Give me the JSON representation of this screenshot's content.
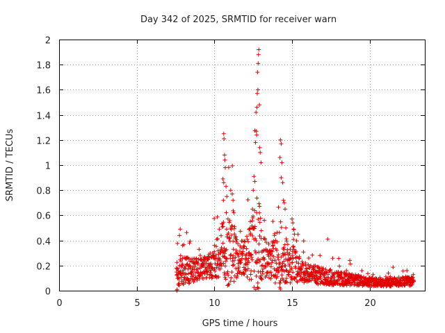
{
  "chart_data": {
    "type": "scatter",
    "title": "Day 342 of 2025, SRMTID for receiver warn",
    "xlabel": "GPS time / hours",
    "ylabel": "SRMTID / TECUs",
    "xlim": [
      0,
      23.55
    ],
    "ylim": [
      0,
      2
    ],
    "x_ticks": [
      "0",
      "5",
      "10",
      "15",
      "20"
    ],
    "y_ticks": [
      "0",
      "0.2",
      "0.4",
      "0.6",
      "0.8",
      "1",
      "1.2",
      "1.4",
      "1.6",
      "1.8",
      "2"
    ],
    "grid": true,
    "marker": "+",
    "series_color": "#e00000",
    "activity_profile": [
      [
        7.6,
        0.12,
        0.22
      ],
      [
        8.0,
        0.15,
        0.25
      ],
      [
        8.5,
        0.15,
        0.22
      ],
      [
        9.0,
        0.16,
        0.2
      ],
      [
        9.5,
        0.18,
        0.2
      ],
      [
        10.0,
        0.2,
        0.25
      ],
      [
        10.5,
        0.3,
        0.5
      ],
      [
        10.8,
        0.35,
        0.8
      ],
      [
        11.2,
        0.28,
        0.55
      ],
      [
        11.6,
        0.25,
        0.3
      ],
      [
        12.0,
        0.25,
        0.3
      ],
      [
        12.5,
        0.3,
        0.7
      ],
      [
        12.8,
        0.3,
        1.0
      ],
      [
        13.2,
        0.25,
        0.35
      ],
      [
        13.6,
        0.22,
        0.3
      ],
      [
        14.2,
        0.25,
        0.6
      ],
      [
        14.6,
        0.22,
        0.4
      ],
      [
        15.0,
        0.2,
        0.35
      ],
      [
        15.5,
        0.16,
        0.22
      ],
      [
        16.0,
        0.13,
        0.18
      ],
      [
        17.0,
        0.11,
        0.15
      ],
      [
        18.0,
        0.09,
        0.12
      ],
      [
        19.0,
        0.08,
        0.1
      ],
      [
        20.0,
        0.07,
        0.08
      ],
      [
        21.0,
        0.06,
        0.07
      ],
      [
        22.0,
        0.07,
        0.08
      ],
      [
        22.8,
        0.07,
        0.08
      ]
    ],
    "highlights": [
      [
        7.58,
        0.0
      ],
      [
        7.6,
        0.01
      ],
      [
        7.8,
        0.49
      ],
      [
        7.75,
        0.44
      ],
      [
        7.95,
        0.36
      ],
      [
        8.4,
        0.38
      ],
      [
        9.5,
        0.15
      ],
      [
        10.0,
        0.36
      ],
      [
        10.6,
        1.25
      ],
      [
        10.62,
        1.21
      ],
      [
        10.65,
        1.08
      ],
      [
        10.68,
        1.04
      ],
      [
        10.7,
        0.98
      ],
      [
        10.55,
        0.89
      ],
      [
        10.6,
        0.86
      ],
      [
        10.75,
        0.83
      ],
      [
        10.8,
        0.75
      ],
      [
        10.58,
        0.72
      ],
      [
        11.05,
        0.8
      ],
      [
        11.15,
        0.77
      ],
      [
        11.2,
        0.72
      ],
      [
        11.25,
        0.62
      ],
      [
        12.55,
        0.91
      ],
      [
        12.6,
        0.87
      ],
      [
        12.65,
        1.18
      ],
      [
        12.7,
        1.27
      ],
      [
        12.72,
        1.24
      ],
      [
        12.68,
        1.42
      ],
      [
        12.74,
        1.46
      ],
      [
        12.76,
        1.57
      ],
      [
        12.8,
        1.6
      ],
      [
        12.78,
        1.74
      ],
      [
        12.82,
        1.81
      ],
      [
        12.84,
        1.88
      ],
      [
        12.86,
        1.92
      ],
      [
        12.9,
        1.48
      ],
      [
        12.92,
        1.14
      ],
      [
        12.95,
        1.1
      ],
      [
        13.0,
        1.02
      ],
      [
        12.5,
        0.8
      ],
      [
        12.45,
        0.65
      ],
      [
        12.9,
        0.62
      ],
      [
        14.25,
        1.2
      ],
      [
        14.3,
        1.17
      ],
      [
        14.22,
        1.06
      ],
      [
        14.35,
        1.02
      ],
      [
        14.3,
        0.9
      ],
      [
        14.4,
        0.86
      ],
      [
        14.45,
        0.72
      ],
      [
        14.5,
        0.7
      ],
      [
        14.55,
        0.65
      ],
      [
        14.6,
        0.5
      ],
      [
        15.0,
        0.57
      ],
      [
        15.05,
        0.54
      ],
      [
        15.1,
        0.49
      ],
      [
        15.15,
        0.45
      ],
      [
        17.3,
        0.41
      ],
      [
        16.8,
        0.28
      ],
      [
        18.5,
        0.16
      ],
      [
        21.2,
        0.14
      ],
      [
        22.4,
        0.16
      ]
    ],
    "window": [
      7.55,
      22.85
    ]
  }
}
